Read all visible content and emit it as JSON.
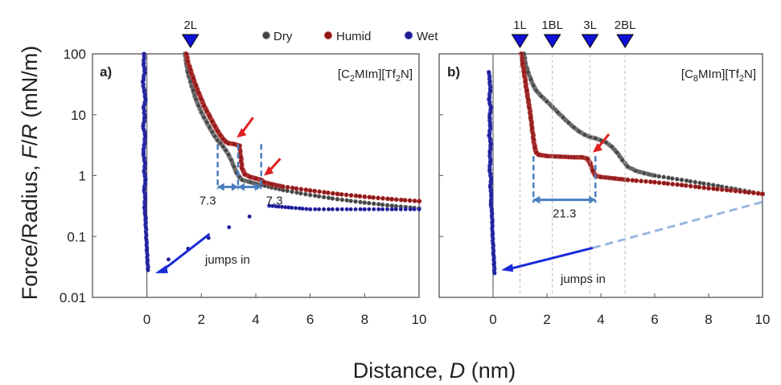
{
  "chart_data": {
    "type": "scatter",
    "ylabel_parts": [
      "Force/Radius, ",
      "F",
      "/",
      "R",
      " (mN/m)"
    ],
    "xlabel_parts": [
      "Distance, ",
      "D",
      " (nm)"
    ],
    "yscale": "log",
    "ylim": [
      0.01,
      100
    ],
    "xlim": [
      -2,
      10
    ],
    "yticks": [
      "0.01",
      "0.1",
      "1",
      "10",
      "100"
    ],
    "xticks": [
      "0",
      "2",
      "4",
      "6",
      "8",
      "10"
    ],
    "grid": false,
    "legend": {
      "placement": "top-center",
      "entries": [
        {
          "name": "Dry",
          "color": "#444444"
        },
        {
          "name": "Humid",
          "color": "#8b1a1a"
        },
        {
          "name": "Wet",
          "color": "#1c1c8c"
        }
      ]
    },
    "panels": [
      {
        "id": "a",
        "tag": "a)",
        "compound": {
          "pre": "[C",
          "sub1": "2",
          "mid": "MIm][Tf",
          "sub2": "2",
          "post": "N]"
        },
        "layer_markers": [
          {
            "label": "2L",
            "x": 1.6
          }
        ],
        "annotations": {
          "gaps": [
            {
              "label": "7.3",
              "x1": 2.6,
              "x2": 3.35,
              "y": 0.65
            },
            {
              "label": "7.3",
              "x1": 3.35,
              "x2": 4.2,
              "y": 0.65
            }
          ],
          "jump_text": "jumps in"
        },
        "series": [
          {
            "name": "Dry",
            "points": [
              [
                1.4,
                100
              ],
              [
                1.45,
                70
              ],
              [
                1.5,
                50
              ],
              [
                1.6,
                35
              ],
              [
                1.7,
                25
              ],
              [
                1.8,
                18
              ],
              [
                1.9,
                14
              ],
              [
                2.0,
                11
              ],
              [
                2.1,
                9
              ],
              [
                2.2,
                7.5
              ],
              [
                2.3,
                6.2
              ],
              [
                2.4,
                5.2
              ],
              [
                2.5,
                4.4
              ],
              [
                2.6,
                3.8
              ],
              [
                2.7,
                3.4
              ],
              [
                2.8,
                3.0
              ],
              [
                2.9,
                2.6
              ],
              [
                3.0,
                2.2
              ],
              [
                3.1,
                1.8
              ],
              [
                3.2,
                1.4
              ],
              [
                3.3,
                1.1
              ],
              [
                3.4,
                0.95
              ],
              [
                3.5,
                0.85
              ],
              [
                3.8,
                0.78
              ],
              [
                4.2,
                0.7
              ],
              [
                5,
                0.58
              ],
              [
                6,
                0.48
              ],
              [
                7,
                0.41
              ],
              [
                8,
                0.36
              ],
              [
                9,
                0.32
              ],
              [
                10,
                0.29
              ]
            ]
          },
          {
            "name": "Humid",
            "points": [
              [
                1.45,
                100
              ],
              [
                1.5,
                75
              ],
              [
                1.6,
                55
              ],
              [
                1.7,
                40
              ],
              [
                1.8,
                30
              ],
              [
                1.9,
                23
              ],
              [
                2.0,
                18
              ],
              [
                2.1,
                14
              ],
              [
                2.2,
                11.5
              ],
              [
                2.3,
                9.5
              ],
              [
                2.4,
                7.8
              ],
              [
                2.5,
                6.5
              ],
              [
                2.6,
                5.4
              ],
              [
                2.7,
                4.6
              ],
              [
                2.8,
                4.0
              ],
              [
                2.9,
                3.6
              ],
              [
                3.0,
                3.4
              ],
              [
                3.2,
                3.3
              ],
              [
                3.4,
                3.1
              ],
              [
                3.45,
                2.0
              ],
              [
                3.5,
                1.3
              ],
              [
                3.6,
                1.05
              ],
              [
                3.8,
                0.95
              ],
              [
                4.0,
                0.9
              ],
              [
                4.2,
                0.85
              ],
              [
                4.3,
                0.78
              ],
              [
                4.6,
                0.72
              ],
              [
                5,
                0.66
              ],
              [
                6,
                0.57
              ],
              [
                7,
                0.5
              ],
              [
                8,
                0.45
              ],
              [
                9,
                0.41
              ],
              [
                10,
                0.38
              ]
            ]
          },
          {
            "name": "Wet",
            "points": [
              [
                -0.1,
                100
              ],
              [
                -0.12,
                70
              ],
              [
                -0.08,
                50
              ],
              [
                -0.15,
                35
              ],
              [
                -0.1,
                25
              ],
              [
                -0.05,
                18
              ],
              [
                -0.12,
                13
              ],
              [
                -0.08,
                9
              ],
              [
                -0.14,
                6.5
              ],
              [
                -0.06,
                4.5
              ],
              [
                -0.1,
                3.2
              ],
              [
                -0.13,
                2.3
              ],
              [
                -0.07,
                1.6
              ],
              [
                -0.1,
                1.15
              ],
              [
                -0.05,
                0.85
              ],
              [
                -0.1,
                0.6
              ],
              [
                -0.06,
                0.42
              ],
              [
                -0.09,
                0.3
              ],
              [
                -0.05,
                0.2
              ],
              [
                -0.04,
                0.14
              ],
              [
                -0.02,
                0.09
              ],
              [
                0,
                0.06
              ],
              [
                0.02,
                0.04
              ],
              [
                0.04,
                0.028
              ],
              [
                4.5,
                0.32
              ],
              [
                5.2,
                0.3
              ],
              [
                6,
                0.28
              ],
              [
                7,
                0.28
              ],
              [
                8,
                0.28
              ],
              [
                9,
                0.28
              ],
              [
                10,
                0.28
              ]
            ]
          }
        ]
      },
      {
        "id": "b",
        "tag": "b)",
        "compound": {
          "pre": "[C",
          "sub1": "8",
          "mid": "MIm][Tf",
          "sub2": "2",
          "post": "N]"
        },
        "layer_markers": [
          {
            "label": "1L",
            "x": 1.0
          },
          {
            "label": "1BL",
            "x": 2.2
          },
          {
            "label": "3L",
            "x": 3.6
          },
          {
            "label": "2BL",
            "x": 4.9
          }
        ],
        "annotations": {
          "gaps": [
            {
              "label": "21.3",
              "x1": 1.5,
              "x2": 3.8,
              "y": 0.4
            }
          ],
          "jump_text": "jumps in"
        },
        "series": [
          {
            "name": "Dry",
            "points": [
              [
                1.15,
                100
              ],
              [
                1.2,
                70
              ],
              [
                1.3,
                50
              ],
              [
                1.4,
                38
              ],
              [
                1.5,
                30
              ],
              [
                1.6,
                25
              ],
              [
                1.8,
                20
              ],
              [
                2.0,
                16.5
              ],
              [
                2.2,
                13.5
              ],
              [
                2.4,
                11
              ],
              [
                2.6,
                9
              ],
              [
                2.8,
                7.4
              ],
              [
                3.0,
                6.2
              ],
              [
                3.2,
                5.3
              ],
              [
                3.4,
                4.7
              ],
              [
                3.6,
                4.3
              ],
              [
                3.8,
                4.1
              ],
              [
                4.0,
                3.8
              ],
              [
                4.2,
                3.5
              ],
              [
                4.4,
                3.0
              ],
              [
                4.6,
                2.4
              ],
              [
                4.8,
                1.8
              ],
              [
                5.0,
                1.4
              ],
              [
                5.3,
                1.2
              ],
              [
                5.6,
                1.1
              ],
              [
                6,
                1.0
              ],
              [
                7,
                0.85
              ],
              [
                8,
                0.72
              ],
              [
                9,
                0.6
              ],
              [
                10,
                0.5
              ]
            ]
          },
          {
            "name": "Humid",
            "points": [
              [
                1.05,
                100
              ],
              [
                1.1,
                70
              ],
              [
                1.15,
                50
              ],
              [
                1.2,
                35
              ],
              [
                1.25,
                25
              ],
              [
                1.3,
                18
              ],
              [
                1.35,
                13
              ],
              [
                1.4,
                9
              ],
              [
                1.45,
                6
              ],
              [
                1.5,
                4
              ],
              [
                1.55,
                2.9
              ],
              [
                1.6,
                2.4
              ],
              [
                1.7,
                2.2
              ],
              [
                2.0,
                2.1
              ],
              [
                2.5,
                2.05
              ],
              [
                3.0,
                2.0
              ],
              [
                3.3,
                2.0
              ],
              [
                3.5,
                1.9
              ],
              [
                3.6,
                1.6
              ],
              [
                3.7,
                1.2
              ],
              [
                3.8,
                1.0
              ],
              [
                4.0,
                0.95
              ],
              [
                4.5,
                0.9
              ],
              [
                5,
                0.85
              ],
              [
                6,
                0.78
              ],
              [
                7,
                0.7
              ],
              [
                8,
                0.62
              ],
              [
                9,
                0.56
              ],
              [
                10,
                0.5
              ]
            ]
          },
          {
            "name": "Wet",
            "points": [
              [
                -0.15,
                50
              ],
              [
                -0.12,
                35
              ],
              [
                -0.1,
                25
              ],
              [
                -0.15,
                18
              ],
              [
                -0.08,
                13
              ],
              [
                -0.13,
                9
              ],
              [
                -0.1,
                6.5
              ],
              [
                -0.14,
                4.6
              ],
              [
                -0.08,
                3.3
              ],
              [
                -0.12,
                2.4
              ],
              [
                -0.1,
                1.7
              ],
              [
                -0.13,
                1.25
              ],
              [
                -0.07,
                0.9
              ],
              [
                -0.1,
                0.65
              ],
              [
                -0.06,
                0.48
              ],
              [
                -0.08,
                0.35
              ],
              [
                -0.04,
                0.25
              ],
              [
                -0.03,
                0.17
              ],
              [
                -0.02,
                0.11
              ],
              [
                0,
                0.075
              ],
              [
                0.02,
                0.05
              ],
              [
                0.04,
                0.035
              ],
              [
                0.05,
                0.025
              ]
            ]
          }
        ]
      }
    ]
  },
  "colors": {
    "dry": "#444444",
    "humid": "#8b1a1a",
    "wet": "#1c1c8c",
    "marker": "#1010d8",
    "annotation": "#4a7fc0",
    "arrow_red": "#e02020",
    "arrow_blue": "#1a2ad8"
  }
}
